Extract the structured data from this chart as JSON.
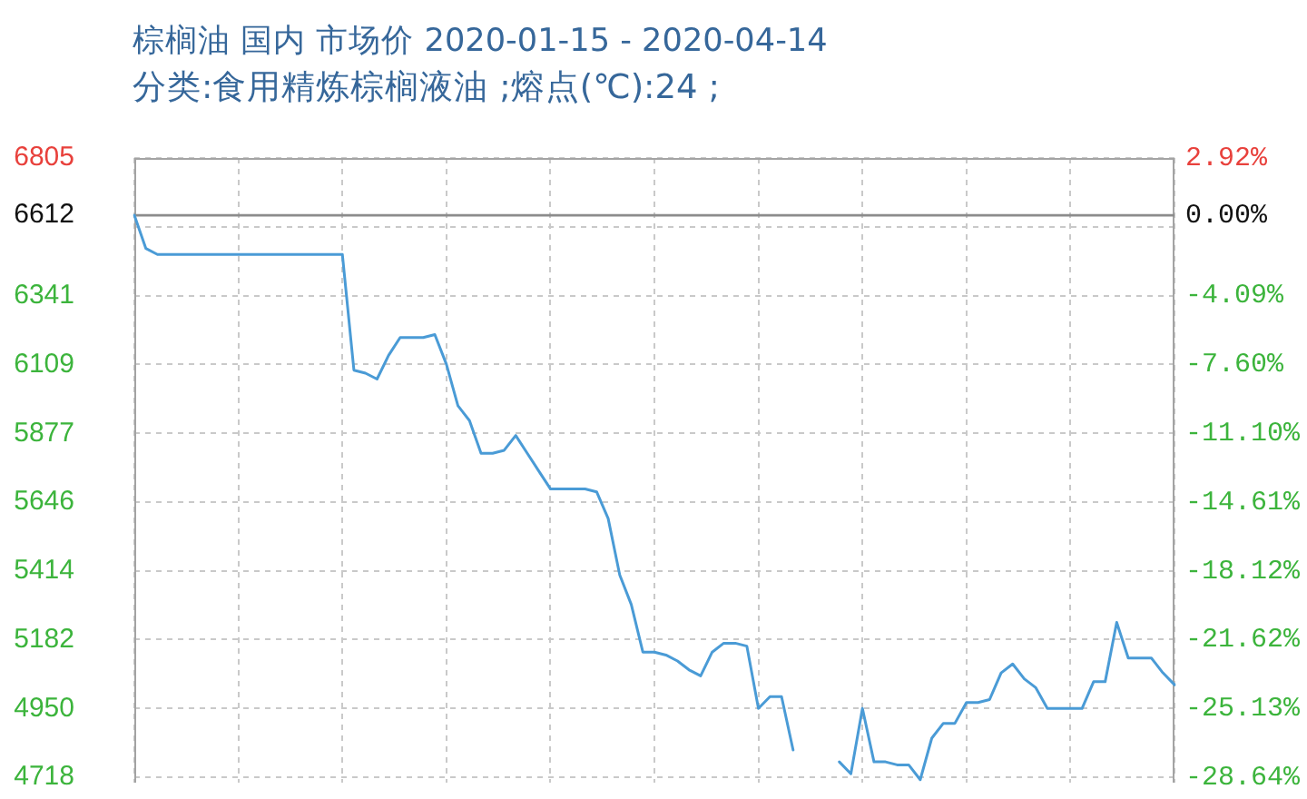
{
  "chart_data": {
    "type": "line",
    "title": "棕榈油 国内 市场价 2020-01-15 - 2020-04-14",
    "subtitle": "分类:食用精炼棕榈液油 ;熔点(℃):24 ;",
    "categories": [
      null,
      null,
      null,
      null,
      null,
      null,
      null,
      null,
      null,
      null,
      null,
      null,
      null,
      null,
      null,
      null,
      null,
      null,
      null,
      null,
      null,
      null,
      null,
      null,
      null,
      null,
      null,
      null,
      null,
      null,
      null,
      null,
      null,
      null,
      null,
      null,
      null,
      null,
      null,
      null,
      null,
      null,
      null,
      null,
      null,
      null,
      null,
      null,
      null,
      null,
      null,
      null,
      null,
      null,
      null,
      null,
      null,
      null,
      null,
      null,
      null,
      null,
      null,
      null,
      null,
      null,
      null,
      null,
      null,
      null,
      null,
      null,
      null,
      null,
      null,
      null,
      null,
      null,
      null,
      null,
      null,
      null,
      null,
      null,
      null,
      null,
      null,
      null,
      null,
      null,
      null
    ],
    "series": [
      {
        "color": "#4a9bd6",
        "values": [
          6612,
          6500,
          6480,
          6480,
          6480,
          6480,
          6480,
          6480,
          6480,
          6480,
          6480,
          6480,
          6480,
          6480,
          6480,
          6480,
          6480,
          6480,
          6480,
          6090,
          6080,
          6060,
          6140,
          6200,
          6200,
          6200,
          6210,
          6110,
          5970,
          5920,
          5810,
          5810,
          5820,
          5870,
          5810,
          5750,
          5690,
          5690,
          5690,
          5690,
          5680,
          5590,
          5400,
          5300,
          5140,
          5140,
          5130,
          5110,
          5080,
          5060,
          5140,
          5170,
          5170,
          5160,
          4950,
          4990,
          4990,
          4810,
          null,
          null,
          null,
          null,
          null,
          null,
          null,
          null,
          null,
          null,
          null,
          null,
          null,
          null,
          null,
          null,
          null,
          null,
          null,
          null,
          null,
          null,
          null,
          null,
          null,
          null,
          null,
          null,
          null,
          null,
          null,
          null,
          null
        ]
      },
      {
        "color": "#4a9bd6",
        "values": [
          null,
          null,
          null,
          null,
          null,
          null,
          null,
          null,
          null,
          null,
          null,
          null,
          null,
          null,
          null,
          null,
          null,
          null,
          null,
          null,
          null,
          null,
          null,
          null,
          null,
          null,
          null,
          null,
          null,
          null,
          null,
          null,
          null,
          null,
          null,
          null,
          null,
          null,
          null,
          null,
          null,
          null,
          null,
          null,
          null,
          null,
          null,
          null,
          null,
          null,
          null,
          null,
          null,
          null,
          null,
          null,
          null,
          null,
          null,
          null,
          null,
          4770,
          4730,
          4950,
          4770,
          4770,
          4760,
          4760,
          4710,
          4850,
          4900,
          4900,
          4970,
          4970,
          4980,
          5070,
          5100,
          5050,
          5020,
          4950,
          4950,
          4950,
          4950,
          5040,
          5040,
          5240,
          5120,
          5120,
          5120,
          5070,
          5030
        ]
      }
    ],
    "ylim": [
      4700,
      6805
    ],
    "yticks": [
      6805,
      6612,
      {
        "value": 6573,
        "label": null
      },
      6341,
      6109,
      5877,
      5646,
      5414,
      5182,
      4950,
      4718
    ],
    "y2lim": [
      -28.92,
      2.92
    ],
    "y2ticks": [
      {
        "value": 2.92,
        "label": "2.92%"
      },
      {
        "value": 0,
        "label": "0.00%"
      },
      {
        "value": -4.09,
        "label": "-4.09%"
      },
      {
        "value": -7.6,
        "label": "-7.60%"
      },
      {
        "value": -11.1,
        "label": "-11.10%"
      },
      {
        "value": -14.61,
        "label": "-14.61%"
      },
      {
        "value": -18.12,
        "label": "-18.12%"
      },
      {
        "value": -21.62,
        "label": "-21.62%"
      },
      {
        "value": -25.13,
        "label": "-25.13%"
      },
      {
        "value": -28.64,
        "label": "-28.64%"
      }
    ],
    "ref_lines": [
      {
        "axis": "y",
        "value": 6612,
        "color": "#8c8c8c"
      }
    ],
    "grid": true,
    "tick_labels": "y",
    "marker": "none",
    "line_style": "solid"
  }
}
